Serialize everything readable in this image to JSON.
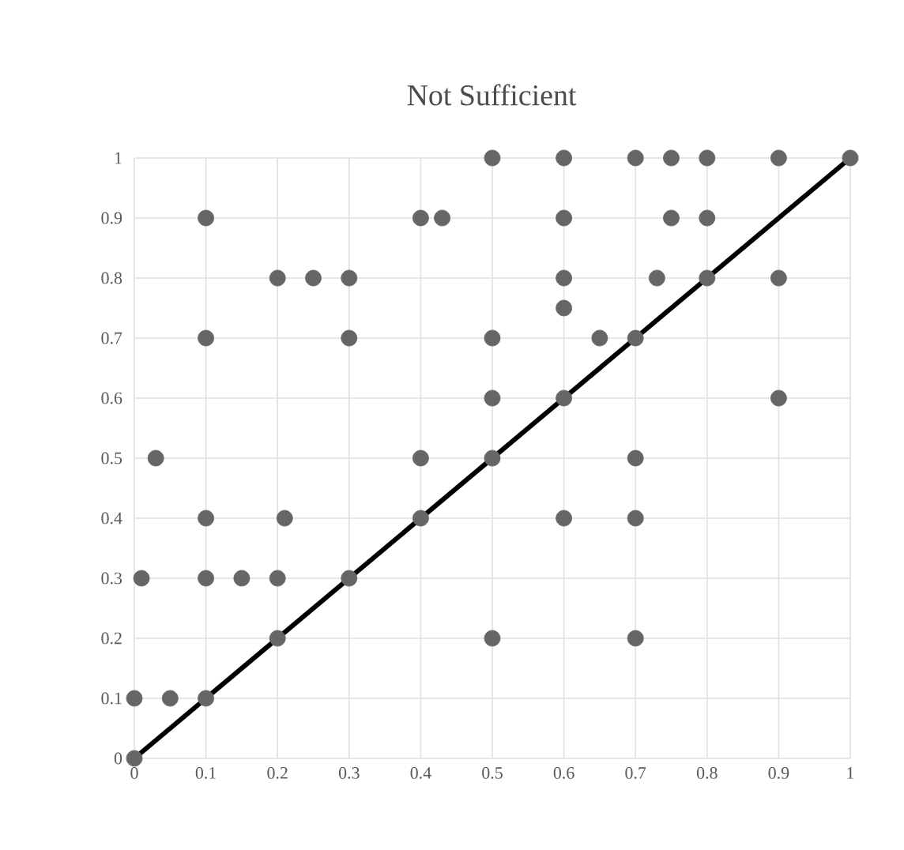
{
  "chart_data": {
    "type": "scatter",
    "title": "Not Sufficient",
    "grid": true,
    "xlim": [
      0,
      1
    ],
    "ylim": [
      0,
      1
    ],
    "xticks": [
      0,
      0.1,
      0.2,
      0.3,
      0.4,
      0.5,
      0.6,
      0.7,
      0.8,
      0.9,
      1
    ],
    "yticks": [
      0,
      0.1,
      0.2,
      0.3,
      0.4,
      0.5,
      0.6,
      0.7,
      0.8,
      0.9,
      1
    ],
    "series": [
      {
        "color": "#666666",
        "marker": "circle",
        "x": [
          0,
          0,
          0.05,
          0.1,
          0.01,
          0.03,
          0.1,
          0.15,
          0.2,
          0.1,
          0.21,
          0.1,
          0.1,
          0.2,
          0.25,
          0.3,
          0.3,
          0.2,
          0.3,
          0.4,
          0.4,
          0.4,
          0.43,
          0.5,
          0.5,
          0.5,
          0.5,
          0.5,
          0.6,
          0.6,
          0.6,
          0.6,
          0.65,
          0.6,
          0.6,
          0.7,
          0.75,
          0.8,
          0.9,
          1,
          0.75,
          0.8,
          0.73,
          0.8,
          0.9,
          0.7,
          0.9,
          0.7,
          0.7,
          0.7
        ],
        "values": [
          0,
          0.1,
          0.1,
          0.1,
          0.3,
          0.5,
          0.3,
          0.3,
          0.3,
          0.4,
          0.4,
          0.7,
          0.9,
          0.8,
          0.8,
          0.8,
          0.7,
          0.2,
          0.3,
          0.4,
          0.5,
          0.9,
          0.9,
          1,
          0.7,
          0.6,
          0.5,
          0.2,
          1,
          0.9,
          0.8,
          0.75,
          0.7,
          0.6,
          0.4,
          1,
          1,
          1,
          1,
          1,
          0.9,
          0.9,
          0.8,
          0.8,
          0.8,
          0.7,
          0.6,
          0.5,
          0.4,
          0.2
        ]
      },
      {
        "type": "line",
        "color": "#000000",
        "marker": "none",
        "line_style": "solid",
        "x": [
          0,
          1
        ],
        "values": [
          0,
          1
        ]
      }
    ]
  }
}
